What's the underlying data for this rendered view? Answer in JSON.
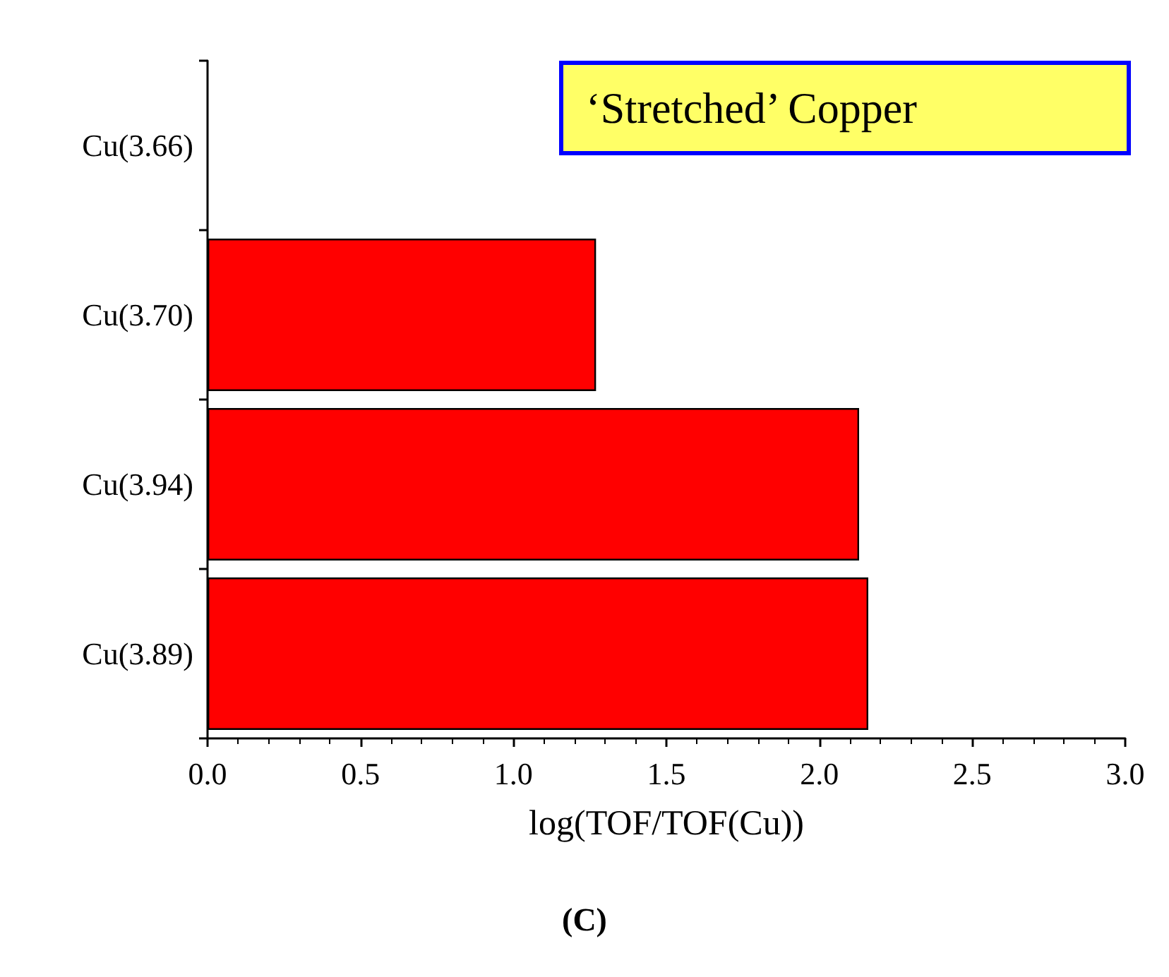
{
  "chart_data": {
    "type": "bar",
    "orientation": "horizontal",
    "categories": [
      "Cu(3.66)",
      "Cu(3.70)",
      "Cu(3.94)",
      "Cu(3.89)"
    ],
    "values": [
      null,
      1.27,
      2.13,
      2.16
    ],
    "color": "#ff0000",
    "xlabel": "log(TOF/TOF(Cu))",
    "xlim": [
      0,
      3
    ],
    "xticks": [
      {
        "value": 0,
        "label": "0.0"
      },
      {
        "value": 0.5,
        "label": "0.5"
      },
      {
        "value": 1,
        "label": "1.0"
      },
      {
        "value": 1.5,
        "label": "1.5"
      },
      {
        "value": 2,
        "label": "2.0"
      },
      {
        "value": 2.5,
        "label": "2.5"
      },
      {
        "value": 3,
        "label": "3.0"
      }
    ],
    "annotations": [
      "‘Stretched’ Copper",
      "(C)"
    ]
  }
}
